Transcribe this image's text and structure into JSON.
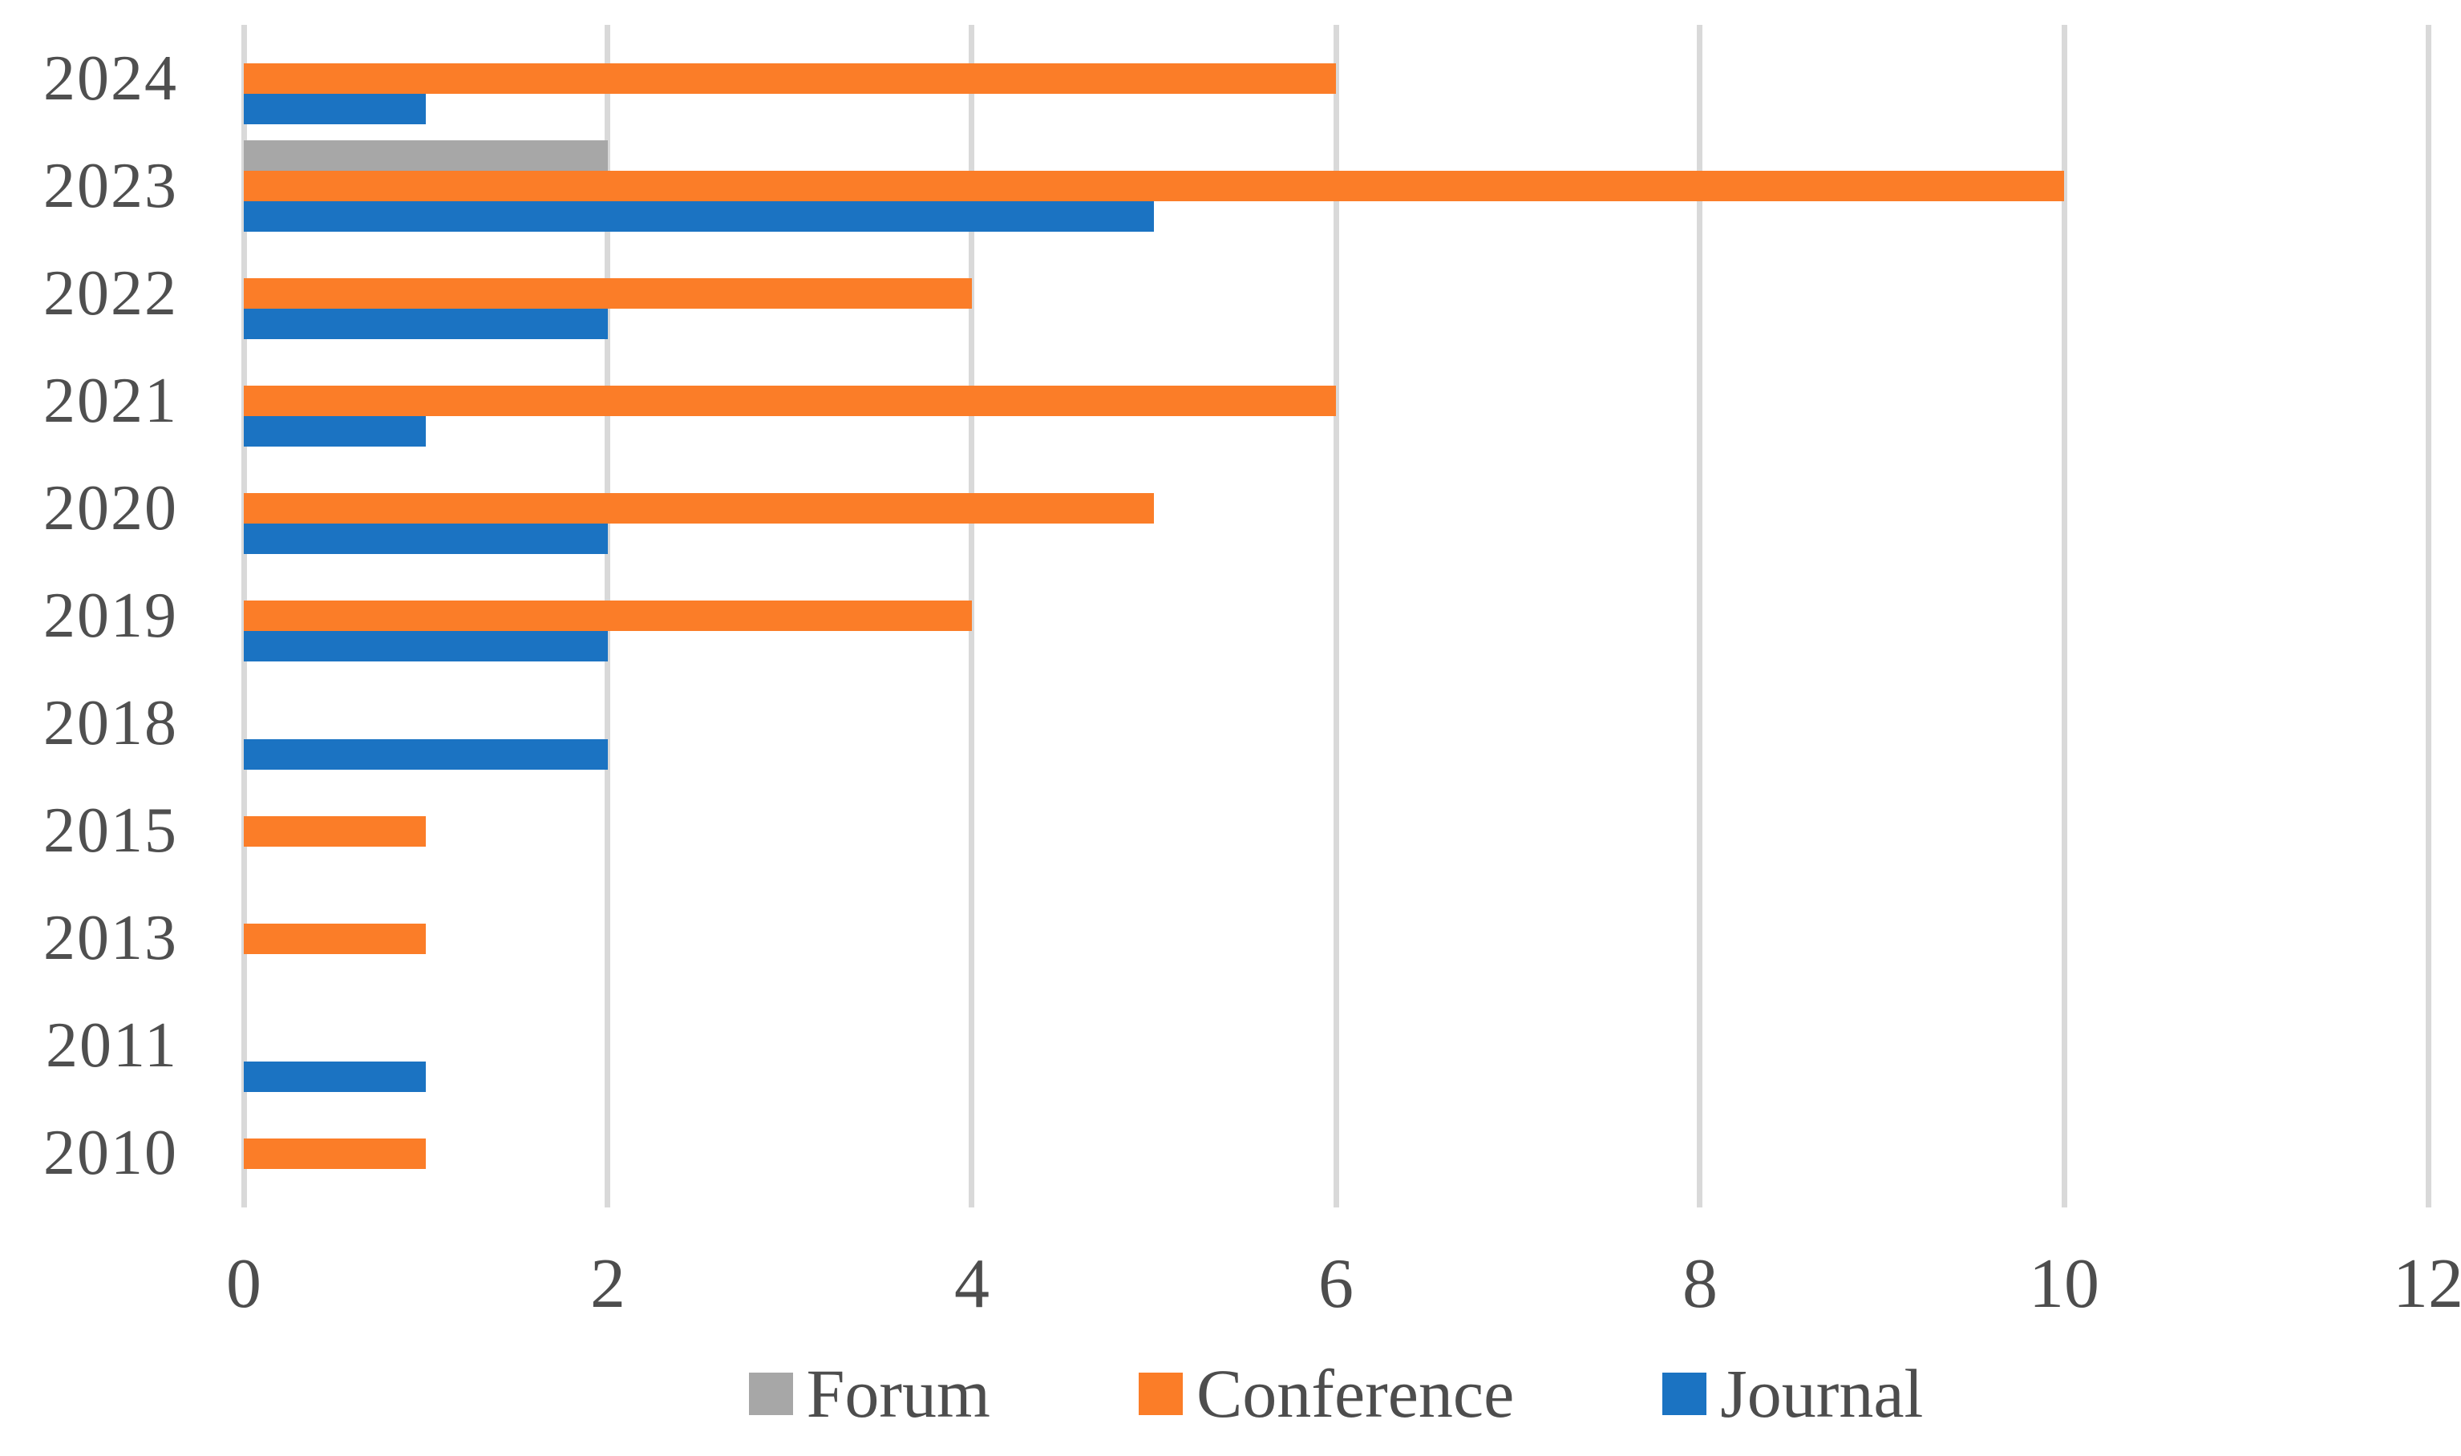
{
  "chart_data": {
    "type": "bar",
    "orientation": "horizontal",
    "title": "",
    "xlabel": "",
    "ylabel": "",
    "categories": [
      "2024",
      "2023",
      "2022",
      "2021",
      "2020",
      "2019",
      "2018",
      "2015",
      "2013",
      "2011",
      "2010"
    ],
    "series": [
      {
        "name": "Forum",
        "color": "#A7A7A7",
        "values": [
          0,
          2,
          0,
          0,
          0,
          0,
          0,
          0,
          0,
          0,
          0
        ]
      },
      {
        "name": "Conference",
        "color": "#FB7D28",
        "values": [
          6,
          10,
          4,
          6,
          5,
          4,
          0,
          1,
          1,
          0,
          1
        ]
      },
      {
        "name": "Journal",
        "color": "#1B73C2",
        "values": [
          1,
          5,
          2,
          1,
          2,
          2,
          2,
          0,
          0,
          1,
          0
        ]
      }
    ],
    "xlim": [
      0,
      12
    ],
    "x_ticks": [
      "0",
      "2",
      "4",
      "6",
      "8",
      "10",
      "12"
    ],
    "grid": true,
    "legend_position": "bottom",
    "legend_labels": [
      "Forum",
      "Conference",
      "Journal"
    ]
  },
  "styles": {
    "background": "#FFFFFF",
    "gridline_color": "#D9D9D9",
    "axis_line_color": "#D9D9D9",
    "tick_label_color": "#4D4D4D",
    "category_label_color": "#4F4F4F",
    "legend_label_color": "#4D4D4D"
  }
}
